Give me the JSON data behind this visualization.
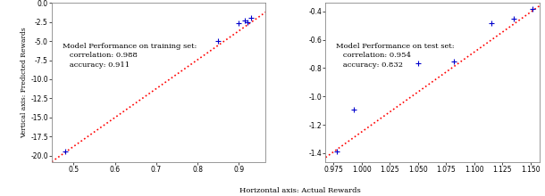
{
  "train": {
    "title": "Model Performance on training set:\n   correlation: 0.988\n   accuracy: 0.911",
    "x_actual": [
      0.48,
      0.85,
      0.9,
      0.915,
      0.93,
      0.92
    ],
    "y_predicted": [
      -19.5,
      -5.0,
      -2.6,
      -2.3,
      -2.0,
      -2.5
    ],
    "line_x": [
      0.447,
      0.965
    ],
    "line_y": [
      -20.8,
      -1.2
    ],
    "xlim": [
      0.447,
      0.965
    ],
    "ylim": [
      -20.8,
      -1.0
    ],
    "xticks": [
      0.5,
      0.6,
      0.7,
      0.8,
      0.9
    ],
    "yticks": [
      0.0,
      -2.5,
      -5.0,
      -7.5,
      -10.0,
      -12.5,
      -15.0,
      -17.5,
      -20.0
    ],
    "ylabel": "Vertical axis: Predicted Rewards"
  },
  "test": {
    "title": "Model Performance on test set:\n   correlation: 0.954\n   accuracy: 0.832",
    "x_actual": [
      0.978,
      0.993,
      1.05,
      1.082,
      1.115,
      1.135,
      1.152
    ],
    "y_predicted": [
      -1.385,
      -1.09,
      -0.765,
      -0.755,
      -0.48,
      -0.45,
      -0.385
    ],
    "line_x": [
      0.968,
      1.158
    ],
    "line_y": [
      -1.43,
      -0.36
    ],
    "xlim": [
      0.968,
      1.158
    ],
    "ylim": [
      -1.46,
      -0.34
    ],
    "xticks": [
      0.975,
      1.0,
      1.025,
      1.05,
      1.075,
      1.1,
      1.125,
      1.15
    ],
    "yticks": [
      -1.4,
      -1.2,
      -1.0,
      -0.8,
      -0.6,
      -0.4
    ]
  },
  "scatter_color": "#0000cc",
  "line_color": "#ff0000",
  "marker": "+",
  "marker_size": 18,
  "line_style": ":",
  "line_width": 1.2,
  "font_size": 6.0,
  "tick_fontsize": 5.5,
  "xlabel": "Horizontal axis: Actual Rewards",
  "background": "#ffffff"
}
